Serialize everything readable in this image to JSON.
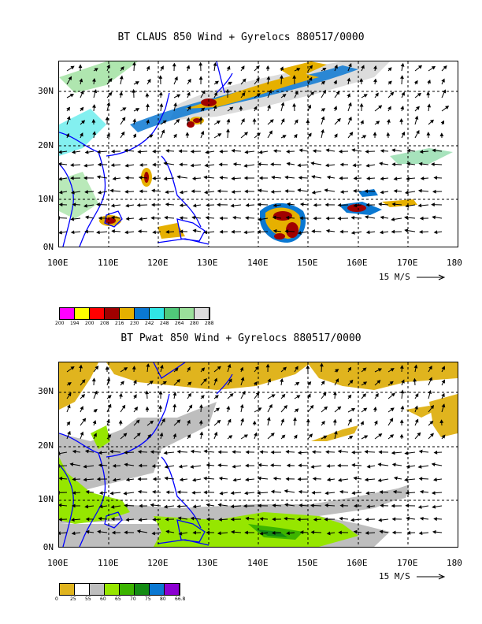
{
  "panel_top": {
    "title": "BT CLAUS 850 Wind + Gyrelocs 880517/0000",
    "y_ticks": [
      "30N",
      "20N",
      "10N",
      "0N"
    ],
    "x_ticks": [
      "100E",
      "110E",
      "120E",
      "130E",
      "140E",
      "150E",
      "160E",
      "170E",
      "180"
    ],
    "wind_scale_label": "15 M/S",
    "colorbar_labels": [
      "200",
      "194",
      "200",
      "208",
      "216",
      "230",
      "242",
      "248",
      "264",
      "280",
      "288"
    ],
    "colorbar_colors": [
      "#ff00ff",
      "#ffff00",
      "#ff0000",
      "#a00000",
      "#e6b000",
      "#0a78d2",
      "#30e6e6",
      "#50c87a",
      "#9be09b",
      "#dcdcdc"
    ]
  },
  "panel_bottom": {
    "title": "BT Pwat 850 Wind + Gyrelocs 880517/0000",
    "y_ticks": [
      "30N",
      "20N",
      "10N",
      "0N"
    ],
    "x_ticks": [
      "100E",
      "110E",
      "120E",
      "130E",
      "140E",
      "150E",
      "160E",
      "170E",
      "180"
    ],
    "wind_scale_label": "15 M/S",
    "colorbar_labels": [
      "0",
      "25",
      "55",
      "60",
      "65",
      "70",
      "75",
      "80",
      "66.8"
    ],
    "colorbar_colors": [
      "#e0b41e",
      "#ffffff",
      "#bebebe",
      "#96e600",
      "#3cb400",
      "#148c14",
      "#0a78d2",
      "#8c00d2"
    ]
  },
  "colors": {
    "coastline": "#0000ff",
    "grid": "#000000"
  }
}
